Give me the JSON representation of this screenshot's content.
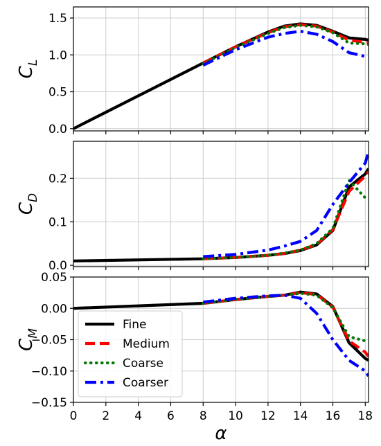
{
  "chart_data": [
    {
      "type": "line",
      "id": "cl",
      "ylabel": "C",
      "ylabel_sub": "L",
      "xlim": [
        0,
        18.2
      ],
      "ylim": [
        -0.03,
        1.65
      ],
      "yticks": [
        0.0,
        0.5,
        1.0,
        1.5
      ],
      "ytick_labels": [
        "0.0",
        "0.5",
        "1.0",
        "1.5"
      ],
      "xticks": [
        0,
        2,
        4,
        6,
        8,
        10,
        12,
        14,
        16,
        18
      ],
      "grid": true,
      "series": [
        {
          "name": "Fine",
          "color": "#000000",
          "dash": "solid",
          "x": [
            0,
            8,
            10,
            12,
            13,
            14,
            15,
            16,
            17,
            18,
            18.2
          ],
          "y": [
            0.0,
            0.89,
            1.11,
            1.31,
            1.39,
            1.42,
            1.4,
            1.32,
            1.23,
            1.21,
            1.2
          ]
        },
        {
          "name": "Medium",
          "color": "#ff0000",
          "dash": "dashed",
          "x": [
            8,
            10,
            12,
            13,
            14,
            15,
            16,
            17,
            18,
            18.2
          ],
          "y": [
            0.89,
            1.11,
            1.3,
            1.38,
            1.41,
            1.39,
            1.31,
            1.2,
            1.17,
            1.17
          ]
        },
        {
          "name": "Coarse",
          "color": "#007700",
          "dash": "dotted",
          "x": [
            8,
            10,
            12,
            13,
            14,
            15,
            16,
            17,
            18,
            18.2
          ],
          "y": [
            0.88,
            1.1,
            1.29,
            1.37,
            1.4,
            1.38,
            1.3,
            1.16,
            1.15,
            1.14
          ]
        },
        {
          "name": "Coarser",
          "color": "#0000ff",
          "dash": "dashdot",
          "x": [
            8,
            10,
            12,
            13,
            14,
            15,
            16,
            17,
            18,
            18.2
          ],
          "y": [
            0.86,
            1.07,
            1.24,
            1.29,
            1.32,
            1.28,
            1.18,
            1.03,
            0.98,
            0.97
          ]
        }
      ]
    },
    {
      "type": "line",
      "id": "cd",
      "ylabel": "C",
      "ylabel_sub": "D",
      "xlim": [
        0,
        18.2
      ],
      "ylim": [
        -0.003,
        0.285
      ],
      "yticks": [
        0.0,
        0.1,
        0.2
      ],
      "ytick_labels": [
        "0.0",
        "0.1",
        "0.2"
      ],
      "xticks": [
        0,
        2,
        4,
        6,
        8,
        10,
        12,
        14,
        16,
        18
      ],
      "grid": true,
      "series": [
        {
          "name": "Fine",
          "color": "#000000",
          "dash": "solid",
          "x": [
            0,
            8,
            10,
            12,
            13,
            14,
            15,
            16,
            17,
            18,
            18.2
          ],
          "y": [
            0.01,
            0.015,
            0.018,
            0.023,
            0.027,
            0.034,
            0.047,
            0.08,
            0.18,
            0.21,
            0.222
          ]
        },
        {
          "name": "Medium",
          "color": "#ff0000",
          "dash": "dashed",
          "x": [
            8,
            10,
            12,
            13,
            14,
            15,
            16,
            17,
            18,
            18.2
          ],
          "y": [
            0.015,
            0.018,
            0.023,
            0.027,
            0.035,
            0.048,
            0.082,
            0.17,
            0.205,
            0.215
          ]
        },
        {
          "name": "Coarse",
          "color": "#007700",
          "dash": "dotted",
          "x": [
            8,
            10,
            12,
            13,
            14,
            15,
            16,
            17,
            18,
            18.2
          ],
          "y": [
            0.015,
            0.018,
            0.023,
            0.028,
            0.035,
            0.05,
            0.085,
            0.195,
            0.155,
            0.158
          ]
        },
        {
          "name": "Coarser",
          "color": "#0000ff",
          "dash": "dashdot",
          "x": [
            8,
            10,
            12,
            13,
            14,
            15,
            16,
            17,
            18,
            18.2
          ],
          "y": [
            0.02,
            0.025,
            0.035,
            0.044,
            0.055,
            0.08,
            0.14,
            0.19,
            0.235,
            0.262
          ]
        }
      ]
    },
    {
      "type": "line",
      "id": "cm",
      "ylabel": "C",
      "ylabel_sub": "M",
      "xlabel": "α",
      "xlim": [
        0,
        18.2
      ],
      "ylim": [
        -0.15,
        0.05
      ],
      "yticks": [
        0.05,
        0.0,
        -0.05,
        -0.1,
        -0.15
      ],
      "ytick_labels": [
        "0.05",
        "0.00",
        "−0.05",
        "−0.10",
        "−0.15"
      ],
      "xticks": [
        0,
        2,
        4,
        6,
        8,
        10,
        12,
        14,
        16,
        18
      ],
      "xtick_labels": [
        "0",
        "2",
        "4",
        "6",
        "8",
        "10",
        "12",
        "14",
        "16",
        "18"
      ],
      "grid": true,
      "legend": "lower-left",
      "series": [
        {
          "name": "Fine",
          "color": "#000000",
          "dash": "solid",
          "x": [
            0,
            8,
            10,
            12,
            13,
            14,
            15,
            16,
            17,
            18,
            18.2
          ],
          "y": [
            0.0,
            0.008,
            0.014,
            0.019,
            0.021,
            0.026,
            0.023,
            0.003,
            -0.055,
            -0.08,
            -0.083
          ]
        },
        {
          "name": "Medium",
          "color": "#ff0000",
          "dash": "dashed",
          "x": [
            8,
            10,
            12,
            13,
            14,
            15,
            16,
            17,
            18,
            18.2
          ],
          "y": [
            0.008,
            0.014,
            0.019,
            0.021,
            0.025,
            0.022,
            0.002,
            -0.052,
            -0.07,
            -0.077
          ]
        },
        {
          "name": "Coarse",
          "color": "#007700",
          "dash": "dotted",
          "x": [
            8,
            10,
            12,
            13,
            14,
            15,
            16,
            17,
            18,
            18.2
          ],
          "y": [
            0.008,
            0.014,
            0.019,
            0.021,
            0.024,
            0.021,
            0.001,
            -0.045,
            -0.052,
            -0.053
          ]
        },
        {
          "name": "Coarser",
          "color": "#0000ff",
          "dash": "dashdot",
          "x": [
            8,
            10,
            12,
            13,
            14,
            15,
            16,
            17,
            18,
            18.2
          ],
          "y": [
            0.01,
            0.016,
            0.02,
            0.021,
            0.016,
            -0.008,
            -0.05,
            -0.083,
            -0.1,
            -0.108
          ]
        }
      ]
    }
  ]
}
